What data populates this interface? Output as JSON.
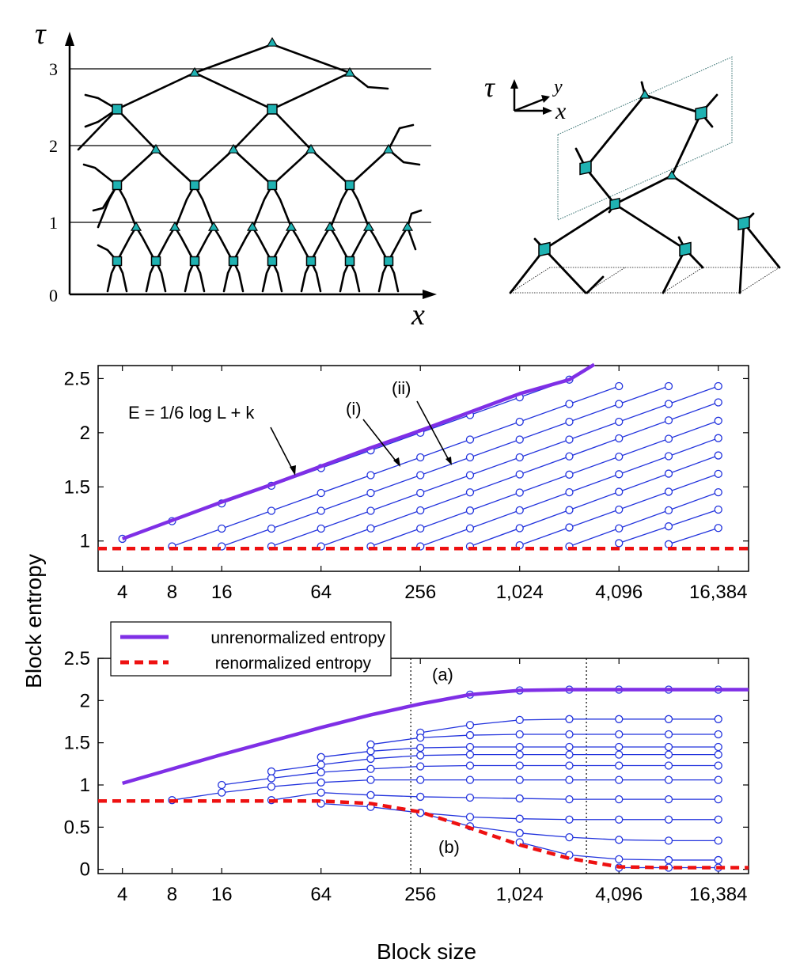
{
  "diagrams": {
    "left": {
      "tau_label": "τ",
      "x_label": "x",
      "tick_labels": [
        "0",
        "1",
        "2",
        "3"
      ]
    },
    "right": {
      "tau_label": "τ",
      "x_label": "x",
      "y_label": "y"
    }
  },
  "shared": {
    "ylabel": "Block entropy",
    "xlabel": "Block size",
    "x_tick_labels": [
      "4",
      "8",
      "16",
      "64",
      "256",
      "1,024",
      "4,096",
      "16,384"
    ],
    "x_tick_values": [
      4,
      8,
      16,
      64,
      256,
      1024,
      4096,
      16384
    ],
    "legend": [
      "unrenormalized entropy",
      "renormalized entropy"
    ],
    "colors": {
      "unrenormalized": "#7f2fe6",
      "renormalized": "#ee1111",
      "levels": "#2233dd"
    }
  },
  "chart_data": [
    {
      "type": "line",
      "x_scale": "log2",
      "xlim": [
        2.85,
        25000
      ],
      "ylim": [
        0.72,
        2.62
      ],
      "y_ticks": [
        1,
        1.5,
        2,
        2.5
      ],
      "y_tick_labels": [
        "1",
        "1.5",
        "2",
        "2.5"
      ],
      "annotations": [
        "E = 1/6 log L + k",
        "(i)",
        "(ii)"
      ],
      "unrenormalized": {
        "x": [
          4,
          8,
          16,
          32,
          64,
          128,
          256,
          512,
          1024,
          2048,
          2900
        ],
        "y": [
          1.02,
          1.19,
          1.36,
          1.52,
          1.69,
          1.86,
          2.02,
          2.19,
          2.36,
          2.49,
          2.63
        ]
      },
      "renormalized": {
        "x": [
          2.85,
          25000
        ],
        "y": [
          0.93,
          0.93
        ]
      },
      "levels": [
        {
          "x": [
            4,
            2048
          ],
          "y": [
            1.02,
            2.49
          ]
        },
        {
          "x": [
            8,
            4096
          ],
          "y": [
            0.95,
            2.43
          ]
        },
        {
          "x": [
            16,
            8192
          ],
          "y": [
            0.95,
            2.43
          ]
        },
        {
          "x": [
            32,
            16384
          ],
          "y": [
            0.95,
            2.43
          ]
        },
        {
          "x": [
            64,
            16384
          ],
          "y": [
            0.95,
            2.28
          ]
        },
        {
          "x": [
            128,
            16384
          ],
          "y": [
            0.95,
            2.11
          ]
        },
        {
          "x": [
            256,
            16384
          ],
          "y": [
            0.95,
            1.95
          ]
        },
        {
          "x": [
            512,
            16384
          ],
          "y": [
            0.95,
            1.79
          ]
        },
        {
          "x": [
            1024,
            16384
          ],
          "y": [
            0.96,
            1.62
          ]
        },
        {
          "x": [
            2048,
            16384
          ],
          "y": [
            0.95,
            1.45
          ]
        },
        {
          "x": [
            4096,
            16384
          ],
          "y": [
            0.98,
            1.29
          ]
        },
        {
          "x": [
            8192,
            16384
          ],
          "y": [
            0.97,
            1.12
          ]
        }
      ]
    },
    {
      "type": "line",
      "x_scale": "log2",
      "xlim": [
        2.85,
        25000
      ],
      "ylim": [
        -0.05,
        2.5
      ],
      "y_ticks": [
        0,
        0.5,
        1,
        1.5,
        2,
        2.5
      ],
      "y_tick_labels": [
        "0",
        "0.5",
        "1",
        "1.5",
        "2",
        "2.5"
      ],
      "annotations": [
        "(a)",
        "(b)"
      ],
      "vlines": [
        224,
        2600
      ],
      "unrenormalized": {
        "x": [
          4,
          8,
          16,
          32,
          64,
          128,
          256,
          512,
          1024,
          2048,
          4096,
          8192,
          16384,
          25000
        ],
        "y": [
          1.02,
          1.19,
          1.36,
          1.52,
          1.68,
          1.83,
          1.96,
          2.07,
          2.12,
          2.13,
          2.13,
          2.13,
          2.13,
          2.13
        ]
      },
      "renormalized": {
        "x": [
          2.85,
          64,
          128,
          256,
          512,
          1024,
          2048,
          4096,
          8192,
          16384,
          25000
        ],
        "y": [
          0.81,
          0.81,
          0.78,
          0.68,
          0.49,
          0.29,
          0.13,
          0.03,
          0.02,
          0.02,
          0.02
        ]
      },
      "levels": [
        {
          "x": [
            512,
            1024,
            2048,
            4096,
            8192,
            16384
          ],
          "y": [
            2.07,
            2.12,
            2.13,
            2.13,
            2.13,
            2.13
          ]
        },
        {
          "x": [
            256,
            512,
            1024,
            2048,
            4096,
            8192,
            16384
          ],
          "y": [
            1.62,
            1.71,
            1.77,
            1.78,
            1.78,
            1.78,
            1.78
          ]
        },
        {
          "x": [
            128,
            256,
            512,
            1024,
            2048,
            4096,
            8192,
            16384
          ],
          "y": [
            1.48,
            1.56,
            1.59,
            1.6,
            1.6,
            1.6,
            1.6,
            1.6
          ]
        },
        {
          "x": [
            64,
            128,
            256,
            512,
            1024,
            2048,
            4096,
            8192,
            16384
          ],
          "y": [
            1.33,
            1.4,
            1.44,
            1.45,
            1.45,
            1.45,
            1.45,
            1.45,
            1.45
          ]
        },
        {
          "x": [
            32,
            64,
            128,
            256,
            512,
            1024,
            2048,
            4096,
            8192,
            16384
          ],
          "y": [
            1.16,
            1.24,
            1.31,
            1.35,
            1.36,
            1.36,
            1.36,
            1.36,
            1.36,
            1.36
          ]
        },
        {
          "x": [
            16,
            32,
            64,
            128,
            256,
            512,
            1024,
            2048,
            4096,
            8192,
            16384
          ],
          "y": [
            1.0,
            1.08,
            1.15,
            1.19,
            1.22,
            1.23,
            1.23,
            1.23,
            1.23,
            1.23,
            1.23
          ]
        },
        {
          "x": [
            8,
            16,
            32,
            64,
            128,
            256,
            512,
            1024,
            2048,
            4096,
            8192,
            16384
          ],
          "y": [
            0.82,
            0.91,
            0.98,
            1.03,
            1.06,
            1.06,
            1.06,
            1.06,
            1.06,
            1.06,
            1.06,
            1.06
          ]
        },
        {
          "x": [
            32,
            64,
            128,
            256,
            512,
            1024,
            2048,
            4096,
            8192,
            16384
          ],
          "y": [
            0.82,
            0.91,
            0.88,
            0.86,
            0.85,
            0.84,
            0.83,
            0.83,
            0.83,
            0.83
          ]
        },
        {
          "x": [
            64,
            128,
            256,
            512,
            1024,
            2048,
            4096,
            8192,
            16384
          ],
          "y": [
            0.78,
            0.74,
            0.67,
            0.62,
            0.6,
            0.59,
            0.59,
            0.59,
            0.59
          ]
        },
        {
          "x": [
            256,
            512,
            1024,
            2048,
            4096,
            8192,
            16384
          ],
          "y": [
            0.67,
            0.51,
            0.43,
            0.38,
            0.35,
            0.34,
            0.34
          ]
        },
        {
          "x": [
            1024,
            2048,
            4096,
            8192,
            16384
          ],
          "y": [
            0.32,
            0.17,
            0.12,
            0.11,
            0.11
          ]
        },
        {
          "x": [
            4096,
            8192,
            16384
          ],
          "y": [
            0.02,
            0.02,
            0.02
          ]
        }
      ]
    }
  ]
}
